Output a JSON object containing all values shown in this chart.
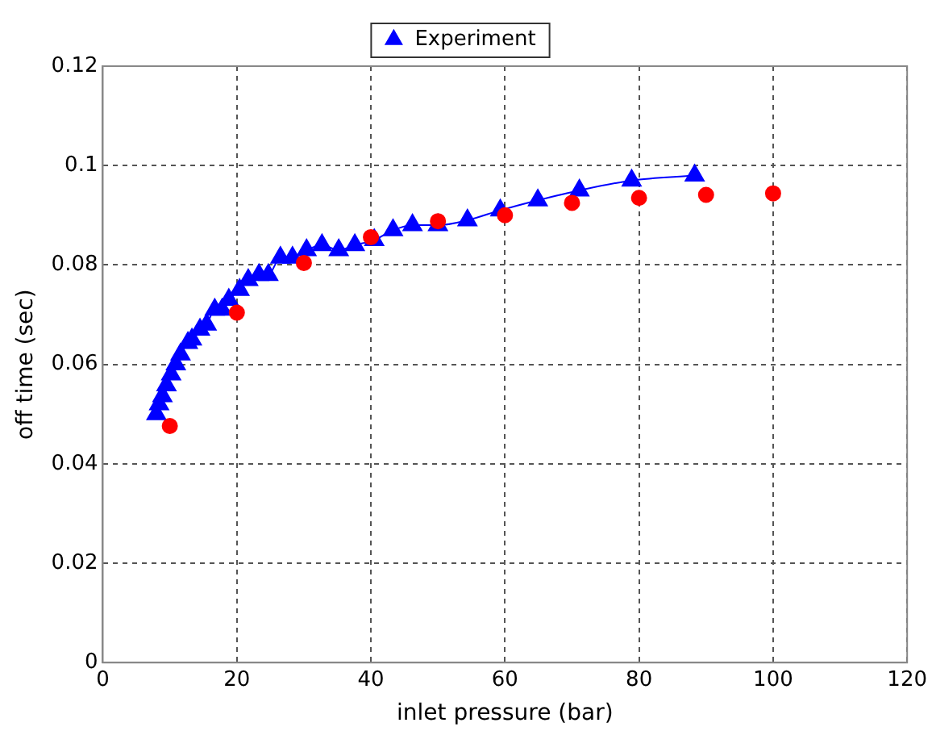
{
  "chart_data": {
    "type": "scatter",
    "xlabel": "inlet pressure (bar)",
    "ylabel": "off time (sec)",
    "xlim": [
      0,
      120
    ],
    "xticks": [
      0,
      20,
      40,
      60,
      80,
      100,
      120
    ],
    "ylim": [
      0,
      0.12
    ],
    "yticks": [
      0,
      0.02,
      0.04,
      0.06,
      0.08,
      0.1,
      0.12
    ],
    "grid": true,
    "legend": "top",
    "series": [
      {
        "color": "#ff0000",
        "marker": "circle",
        "x": [
          10,
          20,
          30,
          40,
          50,
          60,
          70,
          80,
          90,
          100
        ],
        "values": [
          0.0476,
          0.0704,
          0.0804,
          0.0856,
          0.0888,
          0.09,
          0.0925,
          0.0935,
          0.0941,
          0.0944
        ]
      },
      {
        "type": "line",
        "name": "Experiment",
        "color": "#0000ff",
        "marker": "triangle",
        "line_style": "solid",
        "x": [
          8.0,
          8.4,
          8.9,
          9.5,
          10.2,
          10.9,
          11.6,
          12.7,
          13.3,
          14.5,
          15.5,
          16.7,
          17.8,
          18.8,
          20.4,
          21.7,
          23.3,
          24.7,
          26.5,
          28.3,
          30.4,
          32.7,
          35.2,
          37.6,
          40.5,
          43.3,
          46.2,
          50.0,
          54.4,
          59.3,
          64.9,
          71.1,
          78.9,
          88.3
        ],
        "values": [
          0.05,
          0.052,
          0.0536,
          0.0558,
          0.058,
          0.06,
          0.062,
          0.0643,
          0.065,
          0.067,
          0.068,
          0.071,
          0.071,
          0.073,
          0.075,
          0.077,
          0.078,
          0.078,
          0.0815,
          0.0815,
          0.083,
          0.084,
          0.083,
          0.084,
          0.085,
          0.087,
          0.088,
          0.088,
          0.089,
          0.091,
          0.093,
          0.095,
          0.097,
          0.098
        ]
      }
    ]
  }
}
